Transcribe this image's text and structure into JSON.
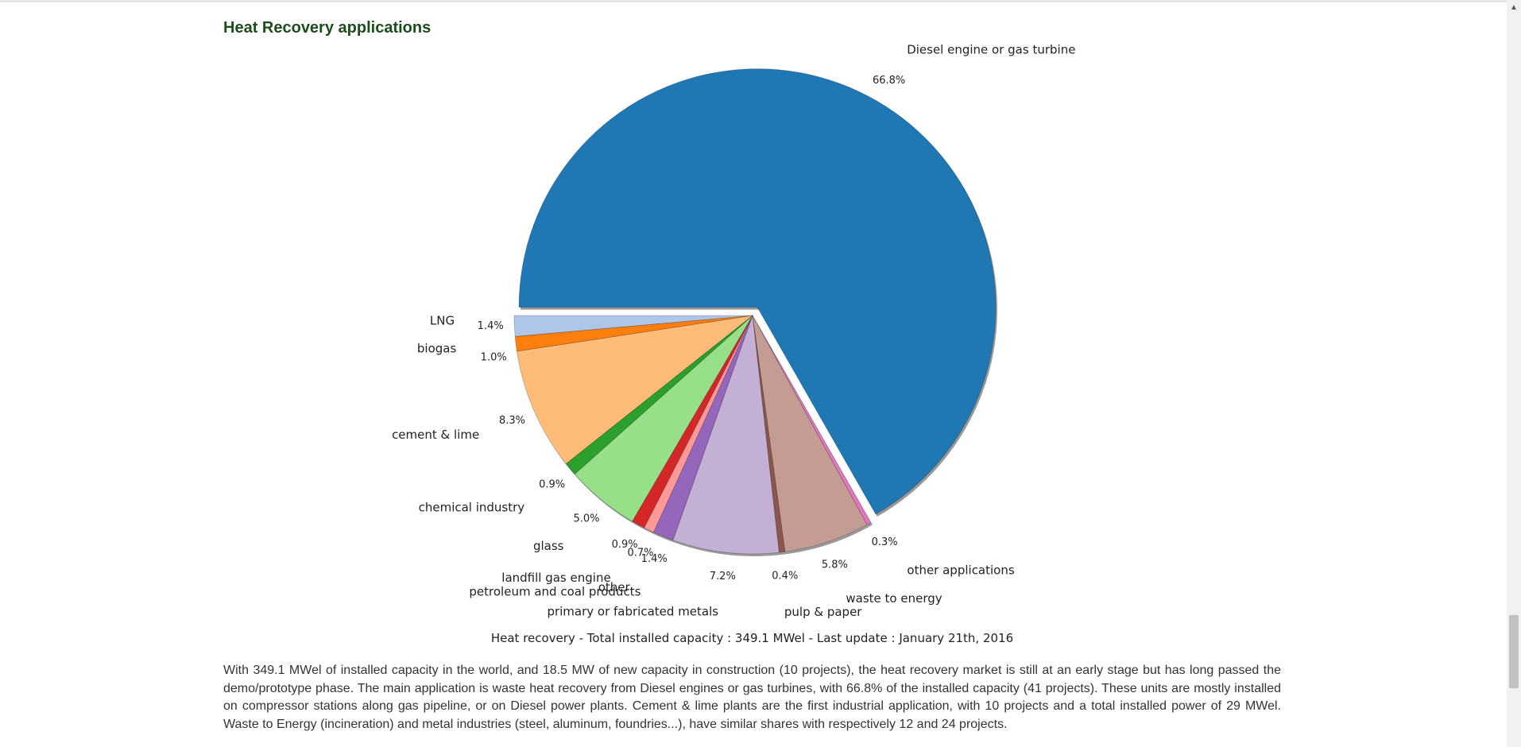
{
  "page": {
    "title": "Heat Recovery applications",
    "caption": "Heat recovery - Total installed capacity : 349.1 MWel - Last update : January 21th, 2016",
    "paragraph": "With 349.1 MWel of installed capacity in the world, and 18.5 MW of new capacity in construction (10 projects), the heat recovery market is still at an early stage but has long passed the demo/prototype phase. The main application is waste heat recovery from Diesel engines or gas turbines, with 66.8% of the installed capacity (41 projects). These units are mostly installed on compressor stations along gas pipeline, or on Diesel power plants. Cement & lime plants are the first industrial application, with 10 projects and a total installed power of 29 MWel. Waste to Energy (incineration) and metal industries (steel, aluminum, foundries...), have similar shares with respectively 12 and 24 projects."
  },
  "scrollbar": {
    "up_arrow": "▲"
  },
  "chart_data": {
    "type": "pie",
    "title": "Heat Recovery applications",
    "start_angle_deg": 180,
    "direction": "clockwise",
    "slices": [
      {
        "label": "Diesel engine or gas turbine",
        "pct_label": "66.8%",
        "value": 66.8,
        "color": "#1f77b4",
        "exploded": true
      },
      {
        "label": "other applications",
        "pct_label": "0.3%",
        "value": 0.3,
        "color": "#e377c2",
        "exploded": false
      },
      {
        "label": "waste to energy",
        "pct_label": "5.8%",
        "value": 5.8,
        "color": "#c49c94",
        "exploded": false
      },
      {
        "label": "pulp & paper",
        "pct_label": "0.4%",
        "value": 0.4,
        "color": "#8c564b",
        "exploded": false
      },
      {
        "label": "primary or fabricated metals",
        "pct_label": "7.2%",
        "value": 7.2,
        "color": "#c5b0d5",
        "exploded": false
      },
      {
        "label": "petroleum and coal products",
        "pct_label": "1.4%",
        "value": 1.4,
        "color": "#9467bd",
        "exploded": false
      },
      {
        "label": "other",
        "pct_label": "0.7%",
        "value": 0.7,
        "color": "#ff9896",
        "exploded": false
      },
      {
        "label": "landfill gas engine",
        "pct_label": "0.9%",
        "value": 0.9,
        "color": "#d62728",
        "exploded": false
      },
      {
        "label": "glass",
        "pct_label": "5.0%",
        "value": 5.0,
        "color": "#98df8a",
        "exploded": false
      },
      {
        "label": "chemical industry",
        "pct_label": "0.9%",
        "value": 0.9,
        "color": "#2ca02c",
        "exploded": false
      },
      {
        "label": "cement & lime",
        "pct_label": "8.3%",
        "value": 8.3,
        "color": "#ffbb78",
        "exploded": false
      },
      {
        "label": "biogas",
        "pct_label": "1.0%",
        "value": 1.0,
        "color": "#ff7f0e",
        "exploded": false
      },
      {
        "label": "LNG",
        "pct_label": "1.4%",
        "value": 1.4,
        "color": "#aec7e8",
        "exploded": false
      }
    ]
  }
}
